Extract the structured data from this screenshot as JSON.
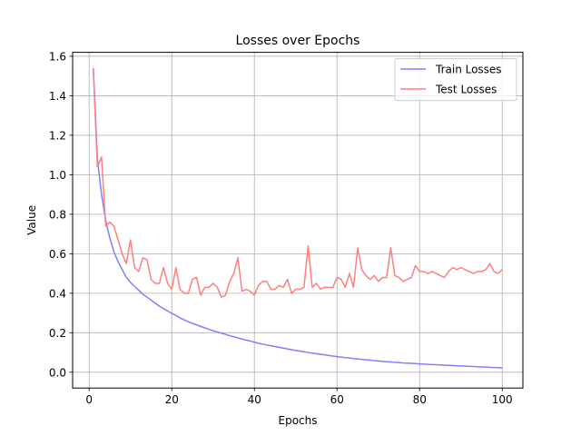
{
  "chart_data": {
    "type": "line",
    "title": "Losses over Epochs",
    "xlabel": "Epochs",
    "ylabel": "Value",
    "xlim": [
      -4,
      105
    ],
    "ylim": [
      -0.08,
      1.62
    ],
    "xticks": [
      0,
      20,
      40,
      60,
      80,
      100
    ],
    "yticks": [
      0.0,
      0.2,
      0.4,
      0.6,
      0.8,
      1.0,
      1.2,
      1.4,
      1.6
    ],
    "grid": true,
    "legend_position": "top-right",
    "x": [
      1,
      2,
      3,
      4,
      5,
      6,
      7,
      8,
      9,
      10,
      11,
      12,
      13,
      14,
      15,
      16,
      17,
      18,
      19,
      20,
      21,
      22,
      23,
      24,
      25,
      26,
      27,
      28,
      29,
      30,
      31,
      32,
      33,
      34,
      35,
      36,
      37,
      38,
      39,
      40,
      41,
      42,
      43,
      44,
      45,
      46,
      47,
      48,
      49,
      50,
      51,
      52,
      53,
      54,
      55,
      56,
      57,
      58,
      59,
      60,
      61,
      62,
      63,
      64,
      65,
      66,
      67,
      68,
      69,
      70,
      71,
      72,
      73,
      74,
      75,
      76,
      77,
      78,
      79,
      80,
      81,
      82,
      83,
      84,
      85,
      86,
      87,
      88,
      89,
      90,
      91,
      92,
      93,
      94,
      95,
      96,
      97,
      98,
      99,
      100
    ],
    "series": [
      {
        "name": "Train Losses",
        "color": "#7f7fff",
        "values": [
          1.54,
          1.08,
          0.9,
          0.77,
          0.68,
          0.61,
          0.56,
          0.52,
          0.48,
          0.455,
          0.435,
          0.415,
          0.395,
          0.38,
          0.365,
          0.35,
          0.335,
          0.322,
          0.31,
          0.298,
          0.288,
          0.275,
          0.265,
          0.256,
          0.248,
          0.24,
          0.232,
          0.225,
          0.218,
          0.21,
          0.204,
          0.198,
          0.192,
          0.185,
          0.18,
          0.174,
          0.168,
          0.163,
          0.158,
          0.152,
          0.147,
          0.142,
          0.138,
          0.134,
          0.13,
          0.126,
          0.122,
          0.118,
          0.114,
          0.11,
          0.107,
          0.104,
          0.1,
          0.097,
          0.094,
          0.091,
          0.088,
          0.085,
          0.082,
          0.079,
          0.077,
          0.074,
          0.072,
          0.069,
          0.067,
          0.065,
          0.063,
          0.061,
          0.059,
          0.057,
          0.055,
          0.053,
          0.052,
          0.05,
          0.049,
          0.047,
          0.046,
          0.045,
          0.044,
          0.042,
          0.041,
          0.04,
          0.039,
          0.038,
          0.037,
          0.036,
          0.035,
          0.034,
          0.033,
          0.032,
          0.031,
          0.03,
          0.029,
          0.028,
          0.027,
          0.026,
          0.025,
          0.024,
          0.023,
          0.022
        ]
      },
      {
        "name": "Test Losses",
        "color": "#ff7f7f",
        "values": [
          1.54,
          1.04,
          1.09,
          0.74,
          0.76,
          0.74,
          0.67,
          0.6,
          0.55,
          0.67,
          0.53,
          0.51,
          0.58,
          0.57,
          0.47,
          0.45,
          0.45,
          0.53,
          0.45,
          0.42,
          0.53,
          0.42,
          0.4,
          0.4,
          0.47,
          0.48,
          0.39,
          0.43,
          0.43,
          0.45,
          0.43,
          0.38,
          0.39,
          0.46,
          0.5,
          0.58,
          0.41,
          0.42,
          0.41,
          0.39,
          0.44,
          0.46,
          0.46,
          0.42,
          0.42,
          0.44,
          0.43,
          0.47,
          0.4,
          0.42,
          0.42,
          0.43,
          0.64,
          0.43,
          0.45,
          0.42,
          0.43,
          0.43,
          0.43,
          0.48,
          0.47,
          0.43,
          0.5,
          0.43,
          0.63,
          0.52,
          0.49,
          0.47,
          0.49,
          0.46,
          0.48,
          0.48,
          0.63,
          0.49,
          0.48,
          0.46,
          0.47,
          0.48,
          0.54,
          0.51,
          0.51,
          0.5,
          0.51,
          0.5,
          0.49,
          0.48,
          0.51,
          0.53,
          0.52,
          0.53,
          0.52,
          0.51,
          0.5,
          0.51,
          0.51,
          0.52,
          0.55,
          0.51,
          0.5,
          0.52
        ]
      }
    ]
  }
}
